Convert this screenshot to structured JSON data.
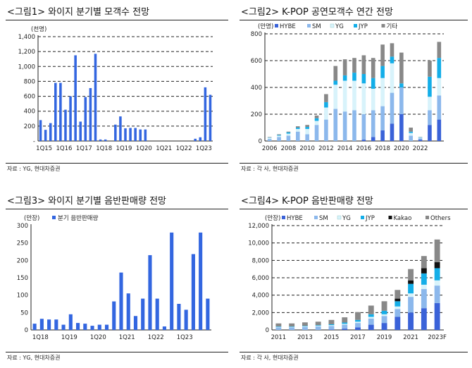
{
  "colors": {
    "bar_blue": "#3366e0",
    "hybe": "#3a62d8",
    "sm": "#8cb8ec",
    "yg": "#d8f3fb",
    "jyp": "#14aee8",
    "kakao": "#111111",
    "others": "#888888"
  },
  "chart_data": [
    {
      "id": "fig1",
      "type": "bar",
      "title": "<그림1> 와이지 분기별 모객수 전망",
      "unit": "(천명)",
      "source": "자료 : YG, 현대차증권",
      "ylim": [
        0,
        1400
      ],
      "yticks": [
        "-",
        "200",
        "400",
        "600",
        "800",
        "1,000",
        "1,200",
        "1,400"
      ],
      "x_ticks": [
        "1Q15",
        "1Q16",
        "1Q17",
        "1Q18",
        "1Q19",
        "1Q20",
        "1Q21",
        "1Q22",
        "1Q23"
      ],
      "grid": "dashed",
      "values": [
        280,
        150,
        240,
        780,
        780,
        420,
        600,
        1150,
        260,
        590,
        710,
        1170,
        20,
        20,
        0,
        220,
        330,
        170,
        175,
        175,
        155,
        155,
        0,
        0,
        0,
        0,
        0,
        0,
        0,
        0,
        0,
        30,
        50,
        720,
        620
      ]
    },
    {
      "id": "fig2",
      "type": "stacked_bar",
      "title": "<그림2> K-POP 공연모객수 연간 전망",
      "unit": "(만명)",
      "source": "자료 : 각 사, 현대차증권",
      "ylim": [
        0,
        800
      ],
      "yticks": [
        "0",
        "200",
        "400",
        "600",
        "800"
      ],
      "x_ticks": [
        "2006",
        "2008",
        "2010",
        "2012",
        "2014",
        "2016",
        "2018",
        "2020",
        "2022"
      ],
      "grid": "dashed",
      "legend": [
        "HYBE",
        "SM",
        "YG",
        "JYP",
        "기타"
      ],
      "series": [
        {
          "name": "HYBE",
          "color_key": "hybe",
          "values": [
            0,
            0,
            0,
            0,
            0,
            0,
            0,
            0,
            0,
            0,
            10,
            30,
            80,
            130,
            200,
            0,
            10,
            120,
            160
          ]
        },
        {
          "name": "SM",
          "color_key": "sm",
          "values": [
            15,
            30,
            40,
            70,
            50,
            120,
            160,
            240,
            220,
            230,
            190,
            200,
            180,
            230,
            200,
            40,
            10,
            110,
            180
          ]
        },
        {
          "name": "YG",
          "color_key": "yg",
          "values": [
            10,
            10,
            15,
            20,
            40,
            30,
            90,
            180,
            230,
            220,
            230,
            160,
            210,
            220,
            0,
            20,
            5,
            100,
            130
          ]
        },
        {
          "name": "JYP",
          "color_key": "jyp",
          "values": [
            2,
            5,
            10,
            10,
            15,
            20,
            40,
            30,
            40,
            60,
            70,
            80,
            90,
            50,
            30,
            10,
            3,
            150,
            150
          ]
        },
        {
          "name": "기타",
          "color_key": "others",
          "values": [
            3,
            5,
            5,
            10,
            15,
            20,
            60,
            110,
            120,
            110,
            140,
            150,
            160,
            100,
            230,
            30,
            2,
            120,
            120
          ]
        }
      ]
    },
    {
      "id": "fig3",
      "type": "bar",
      "title": "<그림3> 와이지 분기별 음반판매량 전망",
      "unit": "(만장)",
      "source": "자료 : YG, 현대차증권",
      "legend": [
        "분기 음반판매량"
      ],
      "ylim": [
        0,
        300
      ],
      "yticks": [
        "0",
        "50",
        "100",
        "150",
        "200",
        "250",
        "300"
      ],
      "x_ticks": [
        "1Q18",
        "1Q19",
        "1Q20",
        "1Q21",
        "1Q22",
        "1Q23"
      ],
      "grid": "none",
      "values": [
        18,
        32,
        30,
        30,
        15,
        45,
        20,
        18,
        12,
        15,
        15,
        82,
        165,
        105,
        40,
        90,
        215,
        90,
        10,
        280,
        75,
        58,
        218,
        280,
        90
      ]
    },
    {
      "id": "fig4",
      "type": "stacked_bar",
      "title": "<그림4> K-POP 음반판매량 전망",
      "unit": "(만장)",
      "source": "자료 : 각 사, 현대차증권",
      "ylim": [
        0,
        12000
      ],
      "yticks": [
        "0",
        "2,000",
        "4,000",
        "6,000",
        "8,000",
        "10,000",
        "12,000"
      ],
      "x_ticks": [
        "2011",
        "2013",
        "2015",
        "2017",
        "2019",
        "2021",
        "2023F"
      ],
      "grid": "dashed",
      "legend": [
        "HYBE",
        "SM",
        "YG",
        "JYP",
        "Kakao",
        "Others"
      ],
      "series": [
        {
          "name": "HYBE",
          "color_key": "hybe",
          "values": [
            0,
            0,
            0,
            0,
            50,
            150,
            300,
            600,
            800,
            1500,
            2000,
            2500,
            3100
          ]
        },
        {
          "name": "SM",
          "color_key": "sm",
          "values": [
            300,
            300,
            350,
            400,
            400,
            450,
            500,
            700,
            800,
            900,
            1800,
            2200,
            2000
          ]
        },
        {
          "name": "YG",
          "color_key": "yg",
          "values": [
            50,
            50,
            60,
            80,
            100,
            100,
            150,
            200,
            200,
            300,
            400,
            500,
            600
          ]
        },
        {
          "name": "JYP",
          "color_key": "jyp",
          "values": [
            50,
            50,
            60,
            70,
            100,
            150,
            200,
            300,
            400,
            600,
            1100,
            1300,
            1400
          ]
        },
        {
          "name": "Kakao",
          "color_key": "kakao",
          "values": [
            0,
            0,
            0,
            0,
            0,
            0,
            0,
            0,
            0,
            300,
            400,
            600,
            700
          ]
        },
        {
          "name": "Others",
          "color_key": "others",
          "values": [
            350,
            350,
            400,
            400,
            500,
            600,
            900,
            1000,
            1100,
            1000,
            1300,
            1400,
            2600
          ]
        }
      ]
    }
  ]
}
